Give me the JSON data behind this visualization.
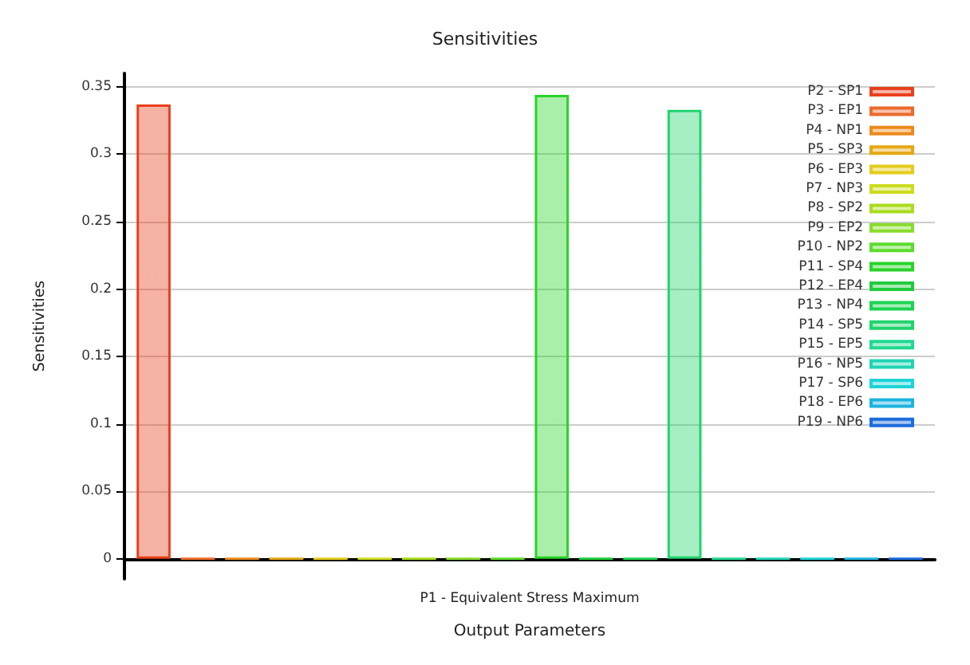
{
  "chart_data": {
    "type": "bar",
    "title": "Sensitivities",
    "xlabel": "Output Parameters",
    "ylabel": "Sensitivities",
    "categories": [
      "P1 - Equivalent Stress Maximum"
    ],
    "series": [
      {
        "name": "P2 - SP1",
        "color": "#e8401c",
        "values": [
          0.337
        ]
      },
      {
        "name": "P3 - EP1",
        "color": "#ec6a2c",
        "values": [
          0
        ]
      },
      {
        "name": "P4 - NP1",
        "color": "#ec8a1c",
        "values": [
          0
        ]
      },
      {
        "name": "P5 - SP3",
        "color": "#e4a814",
        "values": [
          0
        ]
      },
      {
        "name": "P6 - EP3",
        "color": "#e4cc1c",
        "values": [
          0
        ]
      },
      {
        "name": "P7 - NP3",
        "color": "#ccdc1c",
        "values": [
          0
        ]
      },
      {
        "name": "P8 - SP2",
        "color": "#a8dc1c",
        "values": [
          0
        ]
      },
      {
        "name": "P9 - EP2",
        "color": "#88dc2c",
        "values": [
          0
        ]
      },
      {
        "name": "P10 - NP2",
        "color": "#5cdc2c",
        "values": [
          0
        ]
      },
      {
        "name": "P11 - SP4",
        "color": "#28d428",
        "values": [
          0.344
        ]
      },
      {
        "name": "P12 - EP4",
        "color": "#20cc3c",
        "values": [
          0
        ]
      },
      {
        "name": "P13 - NP4",
        "color": "#1cd450",
        "values": [
          0
        ]
      },
      {
        "name": "P14 - SP5",
        "color": "#20d46c",
        "values": [
          0.333
        ]
      },
      {
        "name": "P15 - EP5",
        "color": "#20d890",
        "values": [
          0
        ]
      },
      {
        "name": "P16 - NP5",
        "color": "#20d4b4",
        "values": [
          0
        ]
      },
      {
        "name": "P17 - SP6",
        "color": "#1cd4d8",
        "values": [
          0
        ]
      },
      {
        "name": "P18 - EP6",
        "color": "#1cb4e0",
        "values": [
          0
        ]
      },
      {
        "name": "P19 - NP6",
        "color": "#1c6cdc",
        "values": [
          0
        ]
      }
    ],
    "ylim": [
      -0.015,
      0.36
    ],
    "yticks": [
      0,
      0.05,
      0.1,
      0.15,
      0.2,
      0.25,
      0.3,
      0.35
    ],
    "grid": "y",
    "legend": "top right"
  }
}
